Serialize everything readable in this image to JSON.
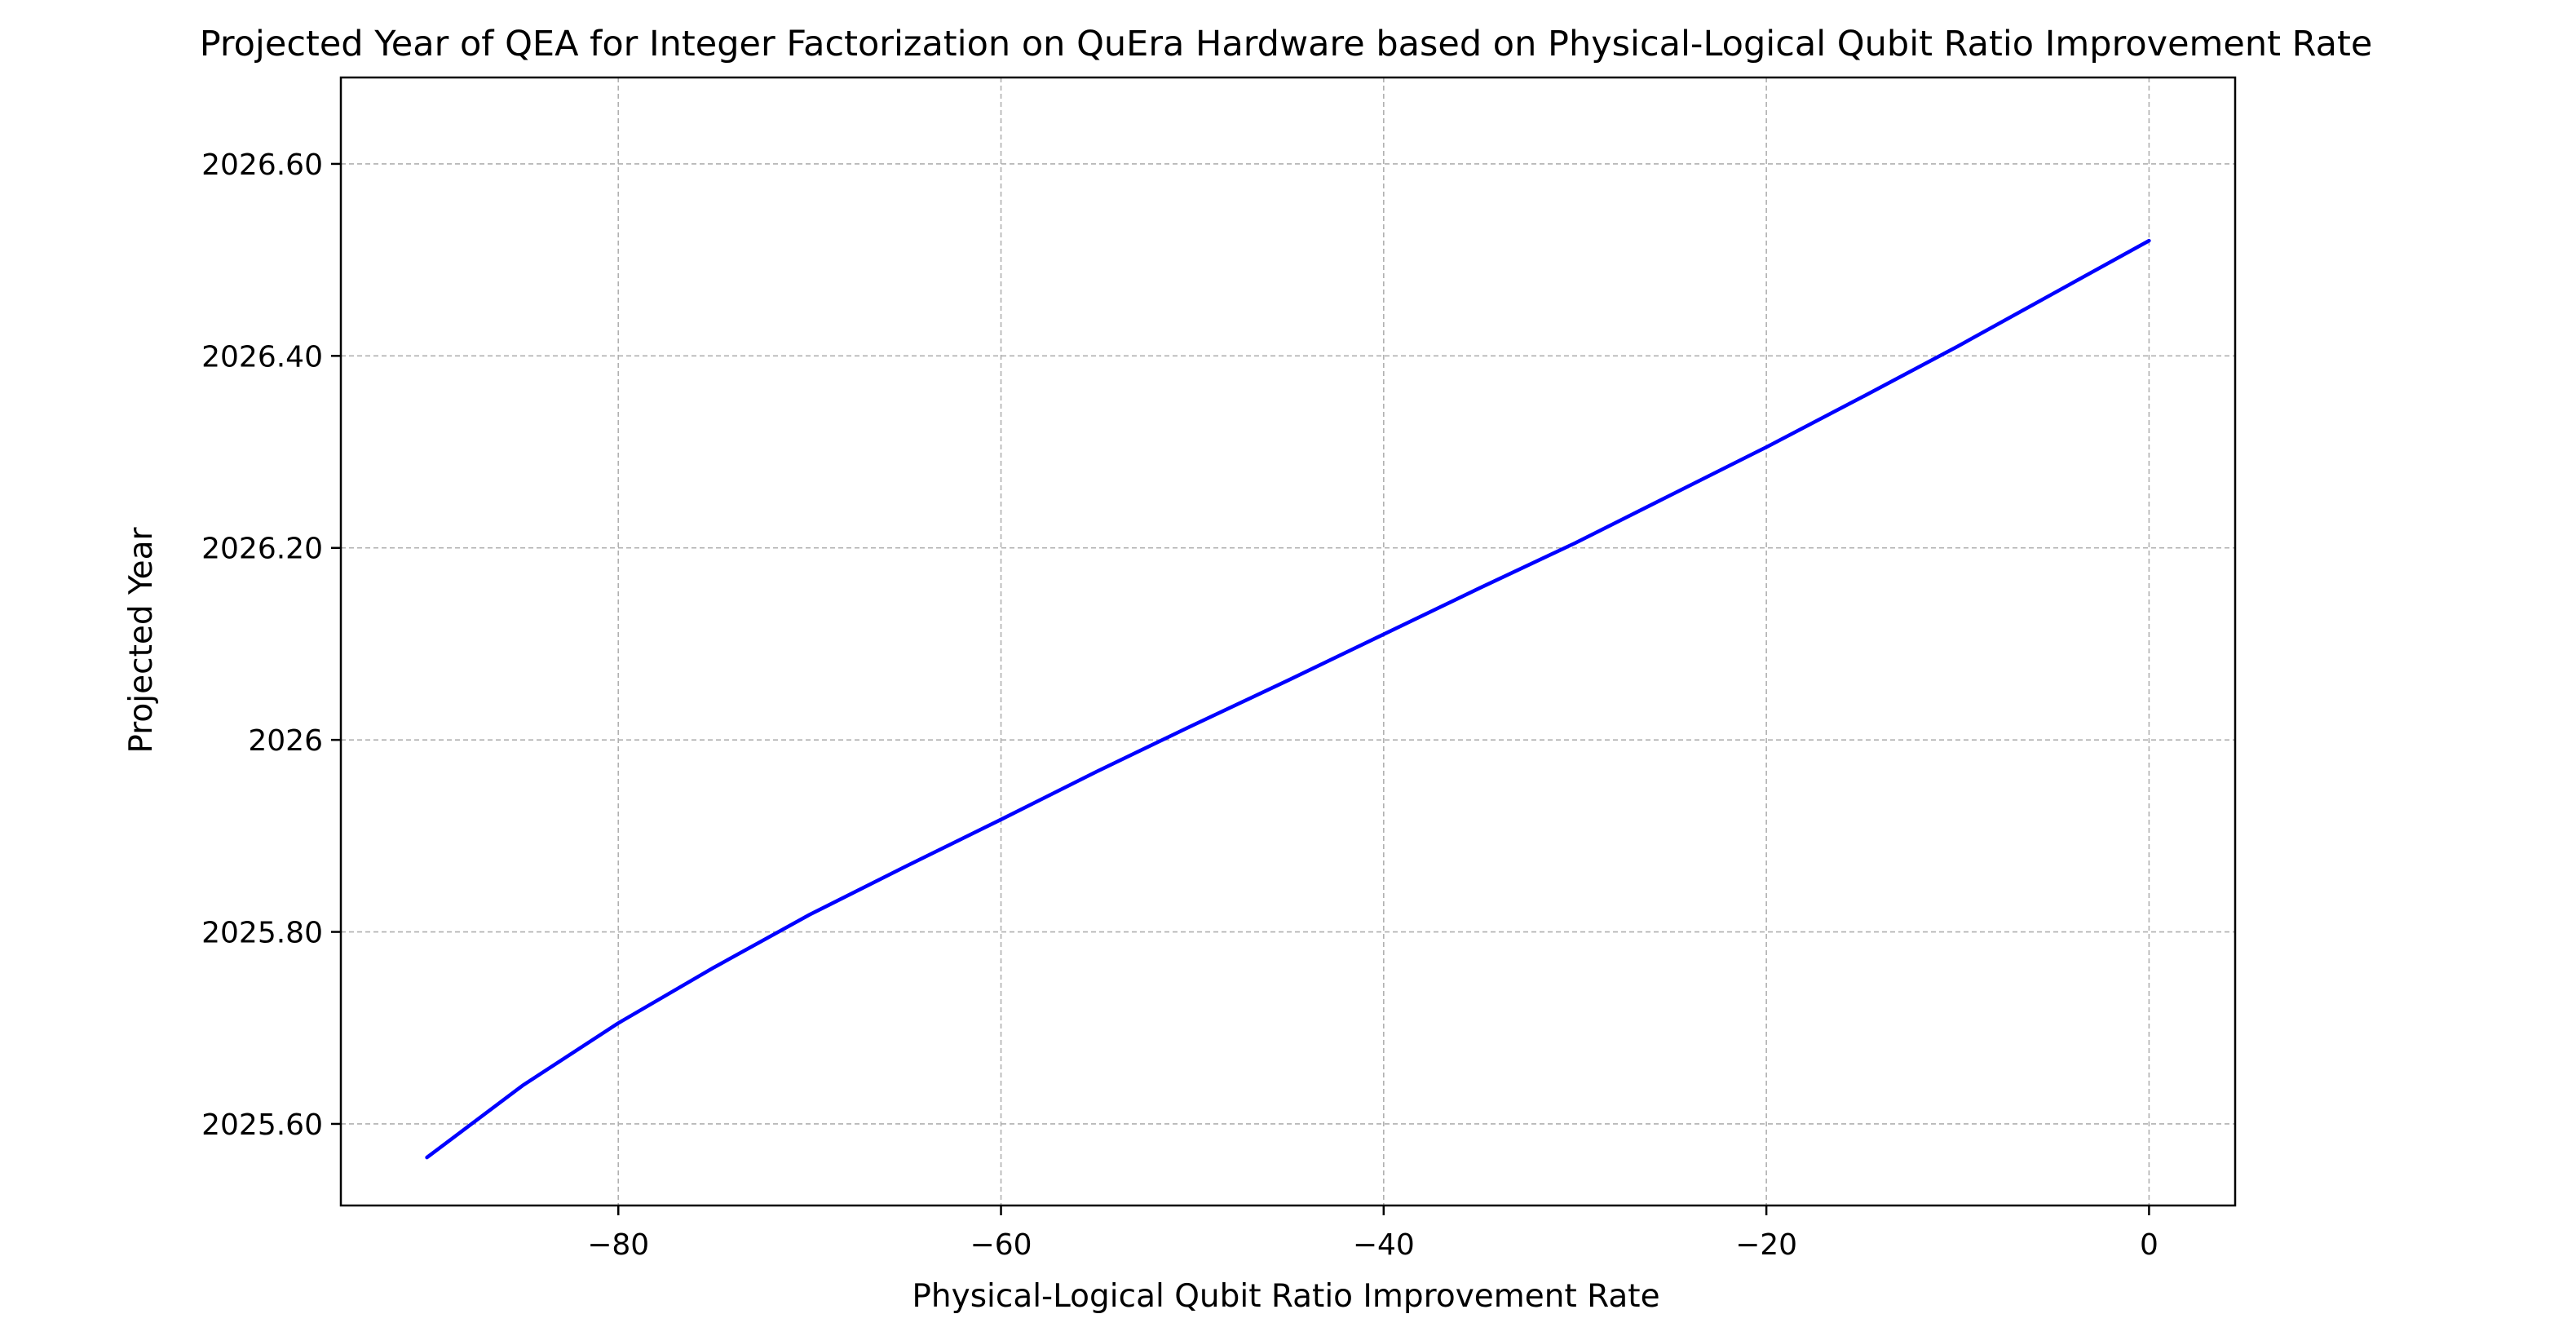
{
  "chart_data": {
    "type": "line",
    "title": "Projected Year of QEA for Integer Factorization on QuEra Hardware based on Physical-Logical Qubit Ratio Improvement Rate",
    "xlabel": "Physical-Logical Qubit Ratio Improvement Rate",
    "ylabel": "Projected Year",
    "xlim": [
      -94.5,
      4.5
    ],
    "ylim": [
      2025.515,
      2026.69
    ],
    "x_ticks": [
      {
        "value": -80,
        "label": "−80"
      },
      {
        "value": -60,
        "label": "−60"
      },
      {
        "value": -40,
        "label": "−40"
      },
      {
        "value": -20,
        "label": "−20"
      },
      {
        "value": 0,
        "label": "0"
      }
    ],
    "y_ticks": [
      {
        "value": 2025.6,
        "label": "2025.60"
      },
      {
        "value": 2025.8,
        "label": "2025.80"
      },
      {
        "value": 2026.0,
        "label": "2026"
      },
      {
        "value": 2026.2,
        "label": "2026.20"
      },
      {
        "value": 2026.4,
        "label": "2026.40"
      },
      {
        "value": 2026.6,
        "label": "2026.60"
      }
    ],
    "grid": true,
    "series": [
      {
        "color": "#0000ff",
        "x": [
          -90,
          -85,
          -80,
          -75,
          -70,
          -65,
          -60,
          -55,
          -50,
          -45,
          -40,
          -35,
          -30,
          -25,
          -20,
          -15,
          -10,
          -5,
          0
        ],
        "y": [
          2025.565,
          2025.64,
          2025.705,
          2025.763,
          2025.818,
          2025.868,
          2025.917,
          2025.967,
          2026.015,
          2026.062,
          2026.11,
          2026.158,
          2026.205,
          2026.255,
          2026.305,
          2026.357,
          2026.41,
          2026.465,
          2026.52
        ]
      }
    ]
  }
}
